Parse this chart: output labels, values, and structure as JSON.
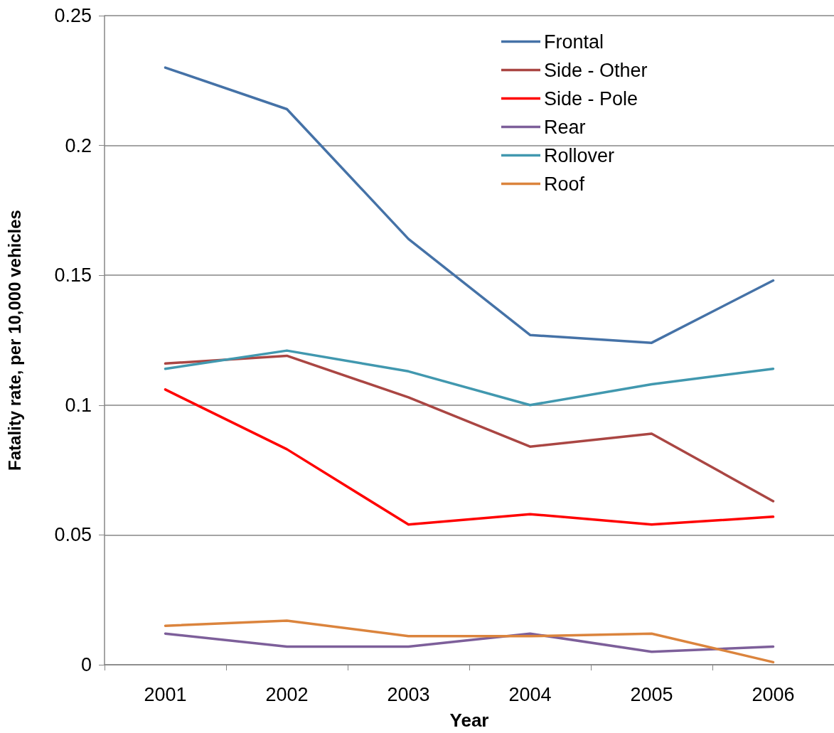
{
  "chart_data": {
    "type": "line",
    "xlabel": "Year",
    "ylabel": "Fatality rate, per 10,000 vehicles",
    "categories": [
      "2001",
      "2002",
      "2003",
      "2004",
      "2005",
      "2006"
    ],
    "series": [
      {
        "name": "Frontal",
        "color": "#4572a7",
        "values": [
          0.23,
          0.214,
          0.164,
          0.127,
          0.124,
          0.148
        ]
      },
      {
        "name": "Side - Other",
        "color": "#aa4643",
        "values": [
          0.116,
          0.119,
          0.103,
          0.084,
          0.089,
          0.063
        ]
      },
      {
        "name": "Side - Pole",
        "color": "#ff0000",
        "values": [
          0.106,
          0.083,
          0.054,
          0.058,
          0.054,
          0.057
        ]
      },
      {
        "name": "Rear",
        "color": "#7d5f9a",
        "values": [
          0.012,
          0.007,
          0.007,
          0.012,
          0.005,
          0.007
        ]
      },
      {
        "name": "Rollover",
        "color": "#4198af",
        "values": [
          0.114,
          0.121,
          0.113,
          0.1,
          0.108,
          0.114
        ]
      },
      {
        "name": "Roof",
        "color": "#db843d",
        "values": [
          0.015,
          0.017,
          0.011,
          0.011,
          0.012,
          0.001
        ]
      }
    ],
    "ylim": [
      0,
      0.25
    ],
    "yticks": [
      0,
      0.05,
      0.1,
      0.15,
      0.2,
      0.25
    ],
    "grid": "y",
    "legend": "top right",
    "marker": "none",
    "line_style": "solid"
  }
}
